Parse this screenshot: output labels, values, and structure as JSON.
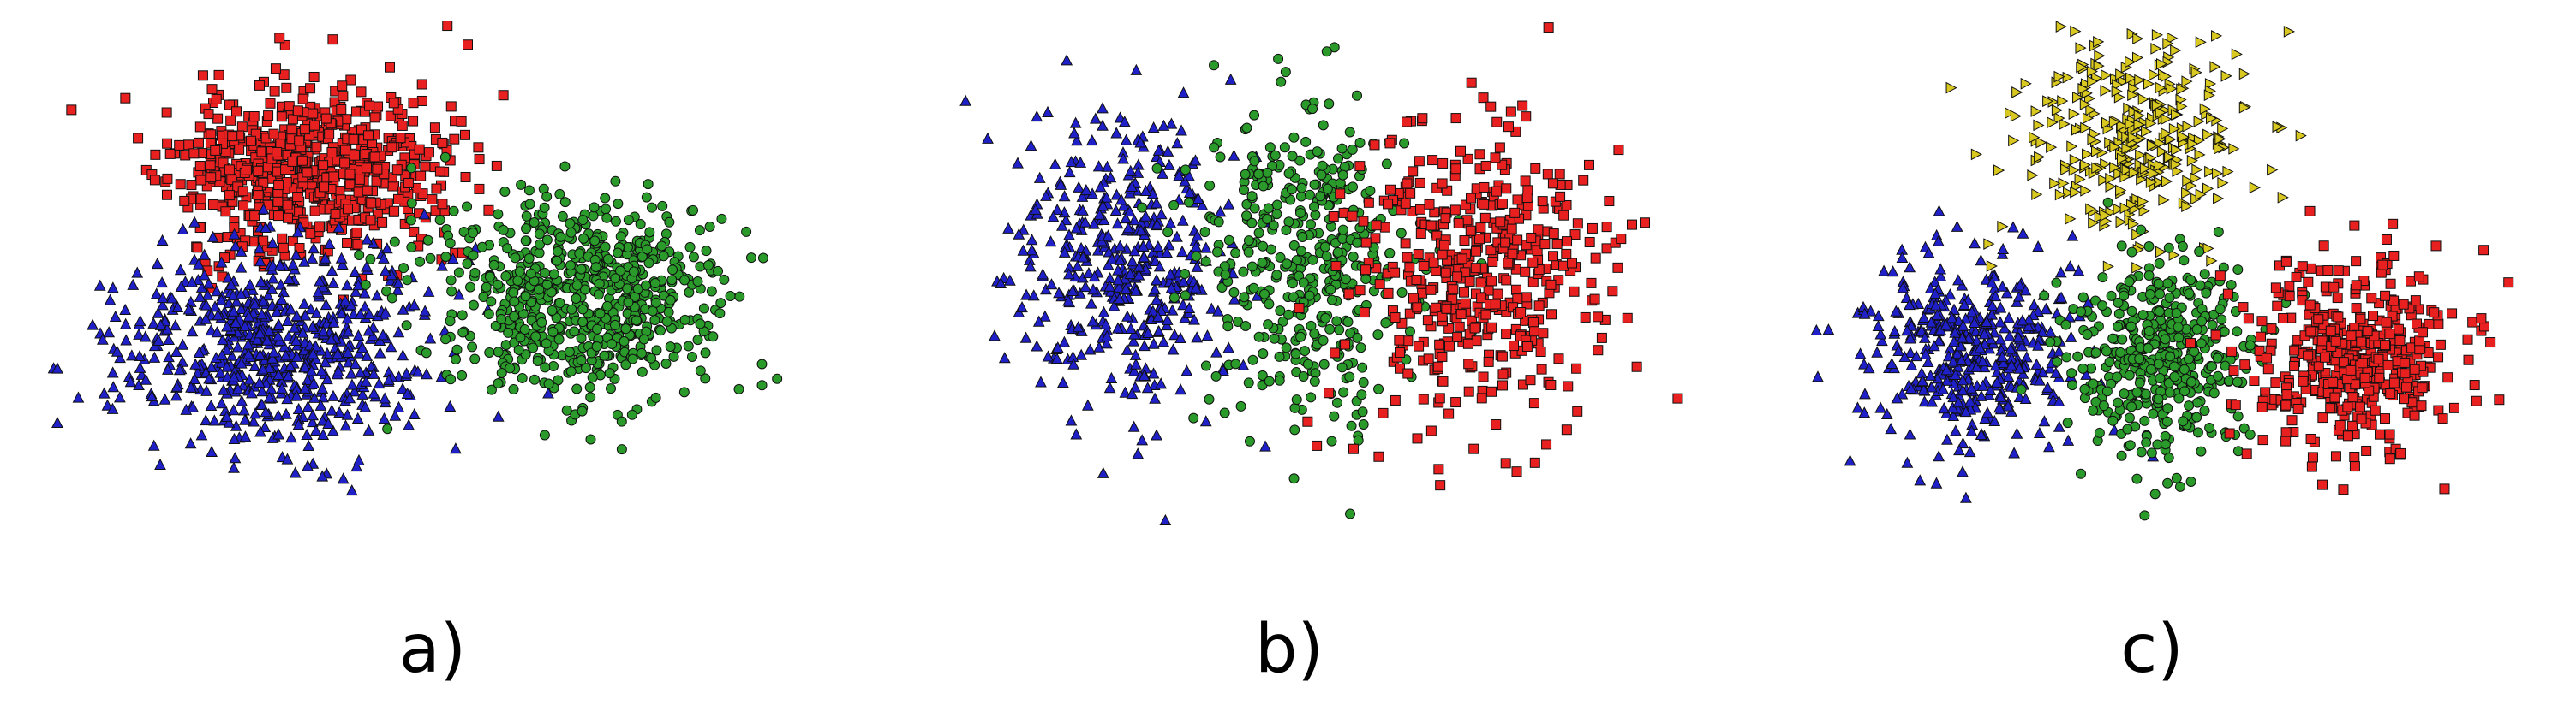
{
  "colors": {
    "blue": "#2020c8",
    "green": "#2a9a2a",
    "red": "#e82020",
    "yellow": "#d8c820",
    "edge": "#101010"
  },
  "panels": [
    {
      "label": "a)"
    },
    {
      "label": "b)"
    },
    {
      "label": "c)"
    }
  ],
  "chart_data": [
    {
      "type": "scatter",
      "title": "",
      "xlabel": "",
      "ylabel": "",
      "xlim": [
        -5,
        5
      ],
      "ylim": [
        -3.5,
        3.5
      ],
      "grid": false,
      "axes": "hidden",
      "series": [
        {
          "marker": "square",
          "color": "red",
          "n": 700,
          "center": [
            -1.5,
            1.6
          ],
          "spread": [
            0.9,
            0.55
          ],
          "seed": 11
        },
        {
          "marker": "triangle-up",
          "color": "blue",
          "n": 700,
          "center": [
            -1.9,
            -0.7
          ],
          "spread": [
            0.95,
            0.65
          ],
          "seed": 12
        },
        {
          "marker": "circle",
          "color": "green",
          "n": 700,
          "center": [
            2.1,
            -0.1
          ],
          "spread": [
            0.95,
            0.65
          ],
          "seed": 13
        }
      ]
    },
    {
      "type": "scatter",
      "title": "",
      "xlabel": "",
      "ylabel": "",
      "xlim": [
        -5,
        5
      ],
      "ylim": [
        -3.5,
        3.5
      ],
      "grid": false,
      "axes": "hidden",
      "series": [
        {
          "marker": "triangle-up",
          "color": "blue",
          "n": 450,
          "center": [
            -2.4,
            0.4
          ],
          "spread": [
            0.75,
            1.0
          ],
          "seed": 21
        },
        {
          "marker": "circle",
          "color": "green",
          "n": 450,
          "center": [
            0.0,
            0.4
          ],
          "spread": [
            0.7,
            1.0
          ],
          "seed": 22
        },
        {
          "marker": "square",
          "color": "red",
          "n": 450,
          "center": [
            2.2,
            0.2
          ],
          "spread": [
            0.8,
            1.0
          ],
          "seed": 23
        }
      ]
    },
    {
      "type": "scatter",
      "title": "",
      "xlabel": "",
      "ylabel": "",
      "xlim": [
        -5,
        5
      ],
      "ylim": [
        -3.5,
        3.5
      ],
      "grid": false,
      "axes": "hidden",
      "series": [
        {
          "marker": "triangle-right",
          "color": "yellow",
          "n": 350,
          "center": [
            -0.4,
            2.1
          ],
          "spread": [
            0.75,
            0.75
          ],
          "seed": 31
        },
        {
          "marker": "triangle-up",
          "color": "blue",
          "n": 450,
          "center": [
            -2.6,
            -0.8
          ],
          "spread": [
            0.65,
            0.6
          ],
          "seed": 32
        },
        {
          "marker": "circle",
          "color": "green",
          "n": 450,
          "center": [
            -0.1,
            -0.9
          ],
          "spread": [
            0.6,
            0.65
          ],
          "seed": 33
        },
        {
          "marker": "square",
          "color": "red",
          "n": 450,
          "center": [
            2.4,
            -0.9
          ],
          "spread": [
            0.7,
            0.6
          ],
          "seed": 34
        }
      ]
    }
  ]
}
